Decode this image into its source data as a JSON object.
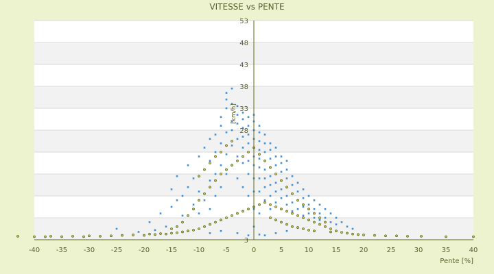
{
  "chart_data": {
    "type": "scatter",
    "title": "VITESSE vs PENTE",
    "xlabel": "Pente [%]",
    "ylabel": "[km/h]",
    "xlim": [
      -40,
      40
    ],
    "ylim": [
      3,
      53
    ],
    "x_ticks": [
      -40,
      -35,
      -30,
      -25,
      -20,
      -15,
      -10,
      -5,
      0,
      5,
      10,
      15,
      20,
      25,
      30,
      35,
      40
    ],
    "y_tick_labels": [
      {
        "value": 3,
        "label": "3"
      },
      {
        "value": 28,
        "label": "28"
      },
      {
        "value": 33,
        "label": "33"
      },
      {
        "value": 38,
        "label": "38"
      },
      {
        "value": 43,
        "label": "43"
      },
      {
        "value": 48,
        "label": "48"
      },
      {
        "value": 53,
        "label": "53"
      }
    ],
    "grid": true,
    "legend": "none",
    "colors": {
      "background": "#eef3cf",
      "plot_band_light": "#ffffff",
      "plot_band_dark": "#f2f2f2",
      "text": "#57612a",
      "axis": "#5b6a1e",
      "series_blue": "#3d8fd6",
      "series_olive_fill": "#c9c73a",
      "series_olive_stroke": "#3f4a12"
    },
    "series": [
      {
        "color": "#3d8fd6",
        "points": [
          [
            -25,
            5.5
          ],
          [
            -21,
            4.8
          ],
          [
            -19,
            7.0
          ],
          [
            -18,
            5.2
          ],
          [
            -17,
            9.0
          ],
          [
            -16,
            6.0
          ],
          [
            -15,
            10.5
          ],
          [
            -15,
            14.5
          ],
          [
            -14,
            12.0
          ],
          [
            -14,
            17.5
          ],
          [
            -13,
            13.0
          ],
          [
            -13,
            8.5
          ],
          [
            -12,
            15.0
          ],
          [
            -12,
            20.0
          ],
          [
            -11,
            11.0
          ],
          [
            -11,
            17.0
          ],
          [
            -10,
            22.0
          ],
          [
            -10,
            14.0
          ],
          [
            -10,
            9.0
          ],
          [
            -9,
            19.0
          ],
          [
            -9,
            24.0
          ],
          [
            -9,
            12.0
          ],
          [
            -8,
            21.0
          ],
          [
            -8,
            16.5
          ],
          [
            -8,
            26.0
          ],
          [
            -8,
            10.0
          ],
          [
            -7,
            23.0
          ],
          [
            -7,
            27.0
          ],
          [
            -7,
            18.0
          ],
          [
            -7,
            13.0
          ],
          [
            -6,
            25.0
          ],
          [
            -6,
            29.0
          ],
          [
            -6,
            20.0
          ],
          [
            -6,
            15.0
          ],
          [
            -6,
            31.0
          ],
          [
            -5,
            27.5
          ],
          [
            -5,
            33.0
          ],
          [
            -5,
            35.0
          ],
          [
            -5,
            22.5
          ],
          [
            -5,
            18.0
          ],
          [
            -5,
            36.5
          ],
          [
            -4,
            28.0
          ],
          [
            -4,
            30.0
          ],
          [
            -4,
            34.0
          ],
          [
            -4,
            24.5
          ],
          [
            -4,
            20.0
          ],
          [
            -4,
            37.5
          ],
          [
            -3,
            29.5
          ],
          [
            -3,
            31.5
          ],
          [
            -3,
            26.0
          ],
          [
            -3,
            22.0
          ],
          [
            -3,
            33.5
          ],
          [
            -3,
            17.0
          ],
          [
            -2,
            28.5
          ],
          [
            -2,
            30.5
          ],
          [
            -2,
            24.0
          ],
          [
            -2,
            26.5
          ],
          [
            -2,
            20.5
          ],
          [
            -2,
            15.0
          ],
          [
            -2,
            32.0
          ],
          [
            -1,
            27.0
          ],
          [
            -1,
            29.0
          ],
          [
            -1,
            25.0
          ],
          [
            -1,
            23.0
          ],
          [
            -1,
            21.0
          ],
          [
            -1,
            31.0
          ],
          [
            -1,
            18.0
          ],
          [
            -1,
            13.0
          ],
          [
            0,
            26.0
          ],
          [
            0,
            28.0
          ],
          [
            0,
            30.0
          ],
          [
            0,
            24.0
          ],
          [
            0,
            22.0
          ],
          [
            0,
            20.0
          ],
          [
            0,
            31.5
          ],
          [
            0,
            17.0
          ],
          [
            0,
            14.0
          ],
          [
            0,
            10.0
          ],
          [
            0,
            6.0
          ],
          [
            1,
            27.5
          ],
          [
            1,
            25.5
          ],
          [
            1,
            23.5
          ],
          [
            1,
            21.5
          ],
          [
            1,
            19.5
          ],
          [
            1,
            17.0
          ],
          [
            1,
            29.0
          ],
          [
            1,
            14.0
          ],
          [
            1,
            9.0
          ],
          [
            2,
            25.0
          ],
          [
            2,
            23.0
          ],
          [
            2,
            21.0
          ],
          [
            2,
            19.0
          ],
          [
            2,
            17.0
          ],
          [
            2,
            27.0
          ],
          [
            2,
            15.0
          ],
          [
            2,
            12.0
          ],
          [
            3,
            23.5
          ],
          [
            3,
            21.5
          ],
          [
            3,
            19.5
          ],
          [
            3,
            17.5
          ],
          [
            3,
            15.5
          ],
          [
            3,
            25.0
          ],
          [
            3,
            13.0
          ],
          [
            3,
            10.0
          ],
          [
            4,
            22.0
          ],
          [
            4,
            20.0
          ],
          [
            4,
            18.0
          ],
          [
            4,
            16.0
          ],
          [
            4,
            14.0
          ],
          [
            4,
            24.0
          ],
          [
            4,
            11.5
          ],
          [
            5,
            20.5
          ],
          [
            5,
            18.5
          ],
          [
            5,
            16.5
          ],
          [
            5,
            14.5
          ],
          [
            5,
            12.5
          ],
          [
            5,
            22.0
          ],
          [
            5,
            10.0
          ],
          [
            6,
            19.0
          ],
          [
            6,
            17.0
          ],
          [
            6,
            15.0
          ],
          [
            6,
            13.0
          ],
          [
            6,
            11.0
          ],
          [
            6,
            21.0
          ],
          [
            7,
            17.5
          ],
          [
            7,
            15.5
          ],
          [
            7,
            13.5
          ],
          [
            7,
            11.5
          ],
          [
            7,
            9.5
          ],
          [
            8,
            16.0
          ],
          [
            8,
            14.0
          ],
          [
            8,
            12.0
          ],
          [
            8,
            10.0
          ],
          [
            9,
            14.5
          ],
          [
            9,
            12.5
          ],
          [
            9,
            10.5
          ],
          [
            9,
            8.5
          ],
          [
            10,
            13.0
          ],
          [
            10,
            11.0
          ],
          [
            10,
            9.0
          ],
          [
            11,
            12.0
          ],
          [
            11,
            10.0
          ],
          [
            11,
            8.0
          ],
          [
            12,
            11.0
          ],
          [
            12,
            9.0
          ],
          [
            12,
            7.5
          ],
          [
            13,
            10.0
          ],
          [
            13,
            8.0
          ],
          [
            14,
            9.0
          ],
          [
            14,
            7.0
          ],
          [
            15,
            8.0
          ],
          [
            15,
            6.5
          ],
          [
            16,
            7.0
          ],
          [
            17,
            6.0
          ],
          [
            18,
            5.5
          ],
          [
            -3,
            4.5
          ],
          [
            -1,
            4.0
          ],
          [
            1,
            4.2
          ],
          [
            2,
            4.0
          ],
          [
            4,
            4.5
          ],
          [
            -6,
            5.0
          ],
          [
            -8,
            4.5
          ],
          [
            6,
            5.0
          ]
        ]
      },
      {
        "color": "#c9c73a",
        "points": [
          [
            -43,
            3.8
          ],
          [
            -40,
            3.7
          ],
          [
            -38,
            3.7
          ],
          [
            -37,
            3.8
          ],
          [
            -35,
            3.7
          ],
          [
            -33,
            3.8
          ],
          [
            -31,
            3.7
          ],
          [
            -30,
            3.9
          ],
          [
            -28,
            3.8
          ],
          [
            -26,
            3.9
          ],
          [
            -24,
            4.0
          ],
          [
            -22,
            4.1
          ],
          [
            -20,
            4.0
          ],
          [
            -19,
            4.3
          ],
          [
            -18,
            4.2
          ],
          [
            -17,
            4.4
          ],
          [
            -16,
            4.3
          ],
          [
            -15,
            4.5
          ],
          [
            -15,
            5.5
          ],
          [
            -14,
            4.6
          ],
          [
            -14,
            6.0
          ],
          [
            -13,
            4.8
          ],
          [
            -13,
            7.0
          ],
          [
            -12,
            5.0
          ],
          [
            -12,
            8.5
          ],
          [
            -11,
            5.2
          ],
          [
            -11,
            10.0
          ],
          [
            -10,
            5.5
          ],
          [
            -10,
            12.0
          ],
          [
            -10,
            17.5
          ],
          [
            -9,
            6.0
          ],
          [
            -9,
            13.5
          ],
          [
            -9,
            19.0
          ],
          [
            -8,
            6.5
          ],
          [
            -8,
            15.0
          ],
          [
            -8,
            20.5
          ],
          [
            -7,
            7.0
          ],
          [
            -7,
            16.5
          ],
          [
            -7,
            22.0
          ],
          [
            -6,
            7.5
          ],
          [
            -6,
            18.0
          ],
          [
            -6,
            23.0
          ],
          [
            -5,
            8.0
          ],
          [
            -5,
            19.0
          ],
          [
            -5,
            24.5
          ],
          [
            -4,
            8.5
          ],
          [
            -4,
            20.0
          ],
          [
            -4,
            25.5
          ],
          [
            -3,
            9.0
          ],
          [
            -3,
            21.0
          ],
          [
            -2,
            9.5
          ],
          [
            -2,
            22.0
          ],
          [
            -1,
            10.0
          ],
          [
            -1,
            23.0
          ],
          [
            0,
            10.5
          ],
          [
            0,
            24.0
          ],
          [
            1,
            11.0
          ],
          [
            1,
            22.5
          ],
          [
            2,
            11.5
          ],
          [
            2,
            21.0
          ],
          [
            3,
            11.0
          ],
          [
            3,
            19.5
          ],
          [
            3,
            8.0
          ],
          [
            4,
            10.5
          ],
          [
            4,
            18.0
          ],
          [
            4,
            7.5
          ],
          [
            5,
            10.0
          ],
          [
            5,
            16.5
          ],
          [
            5,
            7.0
          ],
          [
            6,
            9.5
          ],
          [
            6,
            15.0
          ],
          [
            6,
            6.5
          ],
          [
            7,
            9.0
          ],
          [
            7,
            13.5
          ],
          [
            7,
            6.0
          ],
          [
            8,
            8.5
          ],
          [
            8,
            12.0
          ],
          [
            8,
            5.8
          ],
          [
            9,
            8.0
          ],
          [
            9,
            11.0
          ],
          [
            9,
            5.5
          ],
          [
            10,
            7.5
          ],
          [
            10,
            10.0
          ],
          [
            10,
            5.2
          ],
          [
            11,
            7.0
          ],
          [
            11,
            9.0
          ],
          [
            11,
            5.0
          ],
          [
            12,
            6.5
          ],
          [
            12,
            8.0
          ],
          [
            13,
            6.0
          ],
          [
            13,
            7.0
          ],
          [
            14,
            5.5
          ],
          [
            14,
            4.8
          ],
          [
            15,
            5.0
          ],
          [
            16,
            4.7
          ],
          [
            17,
            4.5
          ],
          [
            18,
            4.3
          ],
          [
            19,
            4.2
          ],
          [
            20,
            4.1
          ],
          [
            22,
            4.0
          ],
          [
            24,
            3.9
          ],
          [
            26,
            3.9
          ],
          [
            28,
            3.8
          ],
          [
            30.5,
            3.8
          ],
          [
            35,
            3.7
          ],
          [
            40,
            3.7
          ]
        ]
      }
    ]
  }
}
